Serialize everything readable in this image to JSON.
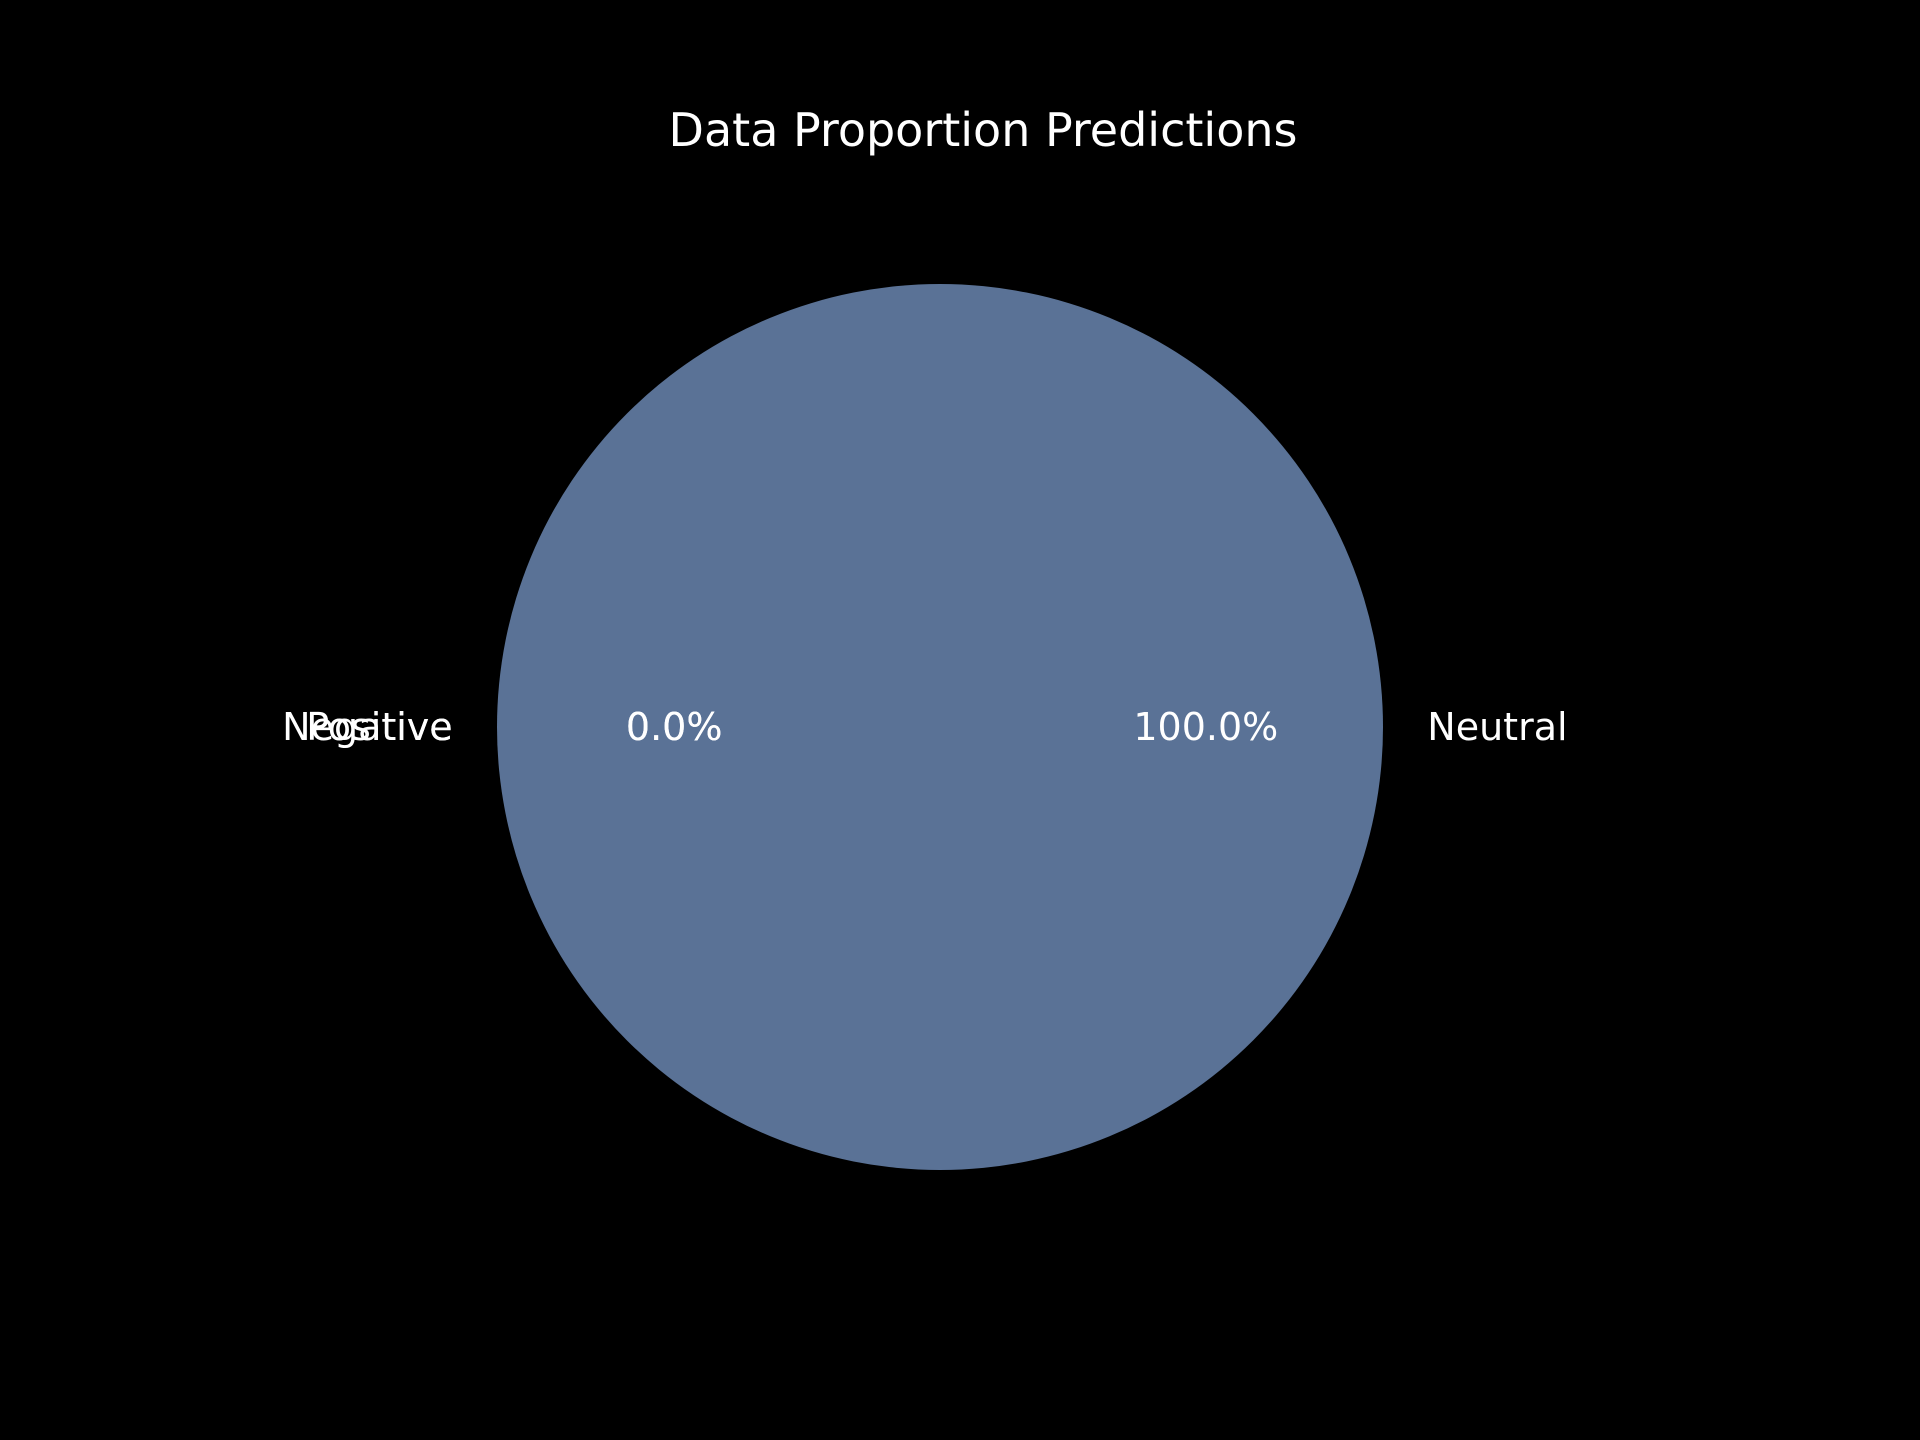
{
  "chart_data": {
    "type": "pie",
    "title": "Data Proportion Predictions",
    "categories": [
      "Neutral",
      "Negative",
      "Positive"
    ],
    "values": [
      100.0,
      0.0,
      0.0
    ],
    "percent_labels": [
      "100.0%",
      "0.0%",
      "0.0%"
    ],
    "colors": [
      "#5a7296",
      "#5a7296",
      "#5a7296"
    ],
    "background": "#000000",
    "text_color": "#ffffff",
    "legend": "none"
  }
}
